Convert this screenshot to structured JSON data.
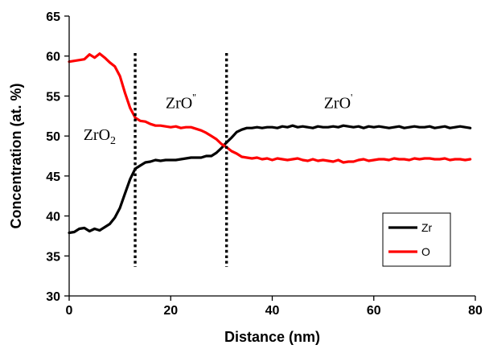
{
  "chart_data": {
    "type": "line",
    "title": "",
    "xlabel": "Distance (nm)",
    "ylabel": "Concentration (at. %)",
    "xlim": [
      0,
      80
    ],
    "ylim": [
      30,
      65
    ],
    "x_ticks": [
      "0",
      "20",
      "40",
      "60",
      "80"
    ],
    "y_ticks": [
      "30",
      "35",
      "40",
      "45",
      "50",
      "55",
      "60",
      "65"
    ],
    "grid": false,
    "legend_position": "bottom-right",
    "colors": {
      "Zr": "#000000",
      "O": "#ff0000"
    },
    "series": [
      {
        "name": "Zr",
        "x": [
          0,
          1,
          2,
          3,
          4,
          5,
          6,
          7,
          8,
          9,
          10,
          11,
          12,
          13,
          14,
          15,
          16,
          17,
          18,
          19,
          20,
          21,
          22,
          23,
          24,
          25,
          26,
          27,
          28,
          29,
          30,
          31,
          32,
          33,
          34,
          35,
          36,
          37,
          38,
          39,
          40,
          41,
          42,
          43,
          44,
          45,
          46,
          47,
          48,
          49,
          50,
          51,
          52,
          53,
          54,
          55,
          56,
          57,
          58,
          59,
          60,
          61,
          62,
          63,
          64,
          65,
          66,
          67,
          68,
          69,
          70,
          71,
          72,
          73,
          74,
          75,
          76,
          77,
          78,
          79
        ],
        "values": [
          37.9,
          38.0,
          38.4,
          38.5,
          38.1,
          38.4,
          38.2,
          38.6,
          39.0,
          39.8,
          41.0,
          42.8,
          44.6,
          45.9,
          46.3,
          46.7,
          46.8,
          47.0,
          46.9,
          47.0,
          47.0,
          47.0,
          47.1,
          47.2,
          47.3,
          47.3,
          47.3,
          47.5,
          47.5,
          47.9,
          48.5,
          49.2,
          49.8,
          50.5,
          50.8,
          51.0,
          51.0,
          51.1,
          51.0,
          51.1,
          51.1,
          51.0,
          51.2,
          51.1,
          51.3,
          51.1,
          51.2,
          51.1,
          51.0,
          51.2,
          51.1,
          51.1,
          51.2,
          51.1,
          51.3,
          51.2,
          51.1,
          51.2,
          51.0,
          51.2,
          51.1,
          51.2,
          51.1,
          51.0,
          51.1,
          51.2,
          51.0,
          51.1,
          51.2,
          51.1,
          51.1,
          51.2,
          51.0,
          51.1,
          51.2,
          51.0,
          51.1,
          51.2,
          51.1,
          51.0
        ]
      },
      {
        "name": "O",
        "x": [
          0,
          1,
          2,
          3,
          4,
          5,
          6,
          7,
          8,
          9,
          10,
          11,
          12,
          13,
          14,
          15,
          16,
          17,
          18,
          19,
          20,
          21,
          22,
          23,
          24,
          25,
          26,
          27,
          28,
          29,
          30,
          31,
          32,
          33,
          34,
          35,
          36,
          37,
          38,
          39,
          40,
          41,
          42,
          43,
          44,
          45,
          46,
          47,
          48,
          49,
          50,
          51,
          52,
          53,
          54,
          55,
          56,
          57,
          58,
          59,
          60,
          61,
          62,
          63,
          64,
          65,
          66,
          67,
          68,
          69,
          70,
          71,
          72,
          73,
          74,
          75,
          76,
          77,
          78,
          79
        ],
        "values": [
          59.3,
          59.4,
          59.5,
          59.6,
          60.2,
          59.8,
          60.3,
          59.8,
          59.2,
          58.7,
          57.5,
          55.4,
          53.5,
          52.3,
          51.9,
          51.8,
          51.5,
          51.3,
          51.3,
          51.2,
          51.1,
          51.2,
          51.0,
          51.1,
          51.1,
          50.9,
          50.7,
          50.4,
          50.0,
          49.6,
          49.0,
          48.6,
          48.1,
          47.8,
          47.4,
          47.3,
          47.2,
          47.3,
          47.1,
          47.2,
          47.0,
          47.2,
          47.1,
          47.0,
          47.1,
          47.2,
          47.0,
          46.9,
          47.1,
          46.9,
          47.0,
          46.9,
          46.8,
          47.0,
          46.7,
          46.8,
          46.8,
          47.0,
          47.1,
          46.9,
          47.0,
          47.1,
          47.1,
          47.0,
          47.2,
          47.1,
          47.1,
          47.0,
          47.2,
          47.1,
          47.2,
          47.2,
          47.1,
          47.1,
          47.2,
          47.0,
          47.1,
          47.1,
          47.0,
          47.1
        ]
      }
    ],
    "vlines": [
      13,
      31
    ],
    "annotations": [
      {
        "label": "ZrO2",
        "base": "ZrO",
        "sub": "2",
        "sup": "",
        "x": 6,
        "y": 49.5
      },
      {
        "label": "ZrO''",
        "base": "ZrO",
        "sub": "",
        "sup": "''",
        "x": 22,
        "y": 53.5
      },
      {
        "label": "ZrO'",
        "base": "ZrO",
        "sub": "",
        "sup": "'",
        "x": 53,
        "y": 53.5
      }
    ]
  }
}
